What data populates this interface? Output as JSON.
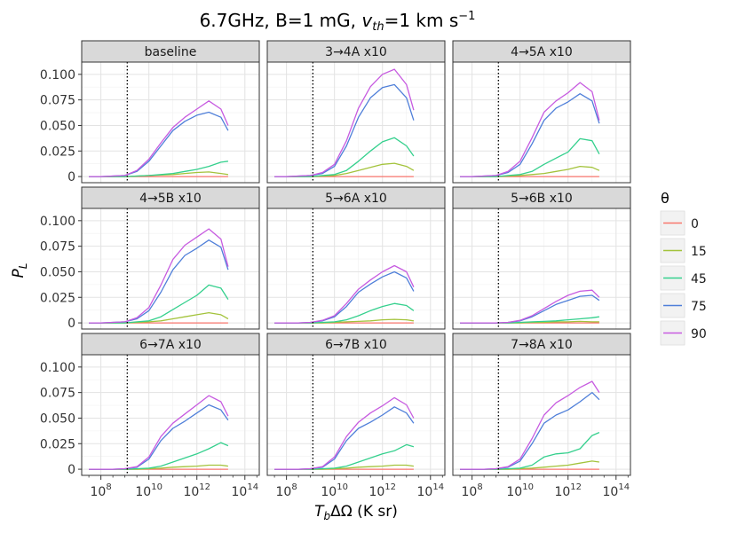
{
  "figure": {
    "title": "6.7GHz, B=1 mG, ",
    "title_var": "v",
    "title_var_sub": "th",
    "title_rest": "=1 km s",
    "title_sup": "−1",
    "xlabel_main": "T",
    "xlabel_sub": "b",
    "xlabel_rest": "ΔΩ (K sr)",
    "ylabel_main": "P",
    "ylabel_sub": "L"
  },
  "axes": {
    "x_tick_base": "10",
    "x_tick_exponents": [
      "8",
      "10",
      "12",
      "14"
    ],
    "x_log_min": 7.2,
    "x_log_max": 14.6,
    "y_tick_labels": [
      "0",
      "0.025",
      "0.050",
      "0.075",
      "0.100"
    ],
    "y_tick_values": [
      0,
      0.025,
      0.05,
      0.075,
      0.1
    ],
    "y_min": -0.006,
    "y_max": 0.112,
    "vline_log_x": 9.1
  },
  "legend": {
    "title": "θ",
    "items": [
      {
        "label": "0",
        "color": "#F8766D"
      },
      {
        "label": "15",
        "color": "#A3C33B"
      },
      {
        "label": "45",
        "color": "#34D08D"
      },
      {
        "label": "75",
        "color": "#4F7FD9"
      },
      {
        "label": "90",
        "color": "#C75BE0"
      }
    ]
  },
  "chart_data": {
    "type": "line",
    "x_scale": "log10",
    "x_log10": [
      7.5,
      8,
      8.5,
      9,
      9.5,
      10,
      10.5,
      11,
      11.5,
      12,
      12.5,
      13,
      13.3
    ],
    "series_names": [
      "0",
      "15",
      "45",
      "75",
      "90"
    ],
    "panels": [
      {
        "title": "baseline",
        "series": [
          {
            "name": "0",
            "values": [
              0,
              0,
              0,
              0,
              0,
              0,
              0,
              0,
              0,
              0,
              0,
              0,
              0
            ]
          },
          {
            "name": "15",
            "values": [
              0,
              0,
              0,
              0,
              0.0005,
              0.001,
              0.0015,
              0.002,
              0.003,
              0.004,
              0.0045,
              0.003,
              0.002
            ]
          },
          {
            "name": "45",
            "values": [
              0,
              0,
              0,
              0,
              0.0005,
              0.001,
              0.002,
              0.003,
              0.005,
              0.007,
              0.01,
              0.014,
              0.015
            ]
          },
          {
            "name": "75",
            "values": [
              0,
              0,
              0.0005,
              0.001,
              0.005,
              0.015,
              0.03,
              0.045,
              0.054,
              0.06,
              0.063,
              0.058,
              0.045
            ]
          },
          {
            "name": "90",
            "values": [
              0,
              0,
              0.0005,
              0.001,
              0.006,
              0.017,
              0.033,
              0.048,
              0.058,
              0.066,
              0.074,
              0.066,
              0.05
            ]
          }
        ]
      },
      {
        "title": "3→4A x10",
        "series": [
          {
            "name": "0",
            "values": [
              0,
              0,
              0,
              0,
              0,
              0,
              0,
              0,
              0,
              0,
              0,
              0,
              0
            ]
          },
          {
            "name": "15",
            "values": [
              0,
              0,
              0,
              0,
              0.0005,
              0.001,
              0.003,
              0.006,
              0.009,
              0.012,
              0.013,
              0.01,
              0.006
            ]
          },
          {
            "name": "45",
            "values": [
              0,
              0,
              0,
              0,
              0.001,
              0.002,
              0.006,
              0.015,
              0.025,
              0.034,
              0.038,
              0.03,
              0.02
            ]
          },
          {
            "name": "75",
            "values": [
              0,
              0,
              0.0005,
              0.001,
              0.003,
              0.01,
              0.03,
              0.058,
              0.077,
              0.087,
              0.09,
              0.077,
              0.055
            ]
          },
          {
            "name": "90",
            "values": [
              0,
              0,
              0.0005,
              0.001,
              0.004,
              0.012,
              0.035,
              0.067,
              0.088,
              0.1,
              0.105,
              0.09,
              0.065
            ]
          }
        ]
      },
      {
        "title": "4→5A x10",
        "series": [
          {
            "name": "0",
            "values": [
              0,
              0,
              0,
              0,
              0,
              0,
              0,
              0,
              0,
              0,
              0,
              0,
              0
            ]
          },
          {
            "name": "15",
            "values": [
              0,
              0,
              0,
              0,
              0.0005,
              0.001,
              0.002,
              0.003,
              0.005,
              0.007,
              0.01,
              0.009,
              0.006
            ]
          },
          {
            "name": "45",
            "values": [
              0,
              0,
              0,
              0,
              0.001,
              0.002,
              0.005,
              0.012,
              0.018,
              0.024,
              0.037,
              0.035,
              0.022
            ]
          },
          {
            "name": "75",
            "values": [
              0,
              0,
              0.0005,
              0.001,
              0.004,
              0.012,
              0.032,
              0.055,
              0.067,
              0.073,
              0.081,
              0.074,
              0.052
            ]
          },
          {
            "name": "90",
            "values": [
              0,
              0,
              0.0005,
              0.001,
              0.005,
              0.015,
              0.038,
              0.063,
              0.074,
              0.082,
              0.092,
              0.083,
              0.055
            ]
          }
        ]
      },
      {
        "title": "4→5B x10",
        "series": [
          {
            "name": "0",
            "values": [
              0,
              0,
              0,
              0,
              0,
              0,
              0,
              0,
              0,
              0,
              0,
              0,
              0
            ]
          },
          {
            "name": "15",
            "values": [
              0,
              0,
              0,
              0,
              0.0005,
              0.001,
              0.002,
              0.004,
              0.006,
              0.008,
              0.01,
              0.008,
              0.004
            ]
          },
          {
            "name": "45",
            "values": [
              0,
              0,
              0,
              0,
              0.001,
              0.002,
              0.006,
              0.013,
              0.02,
              0.027,
              0.037,
              0.034,
              0.023
            ]
          },
          {
            "name": "75",
            "values": [
              0,
              0,
              0.0005,
              0.001,
              0.004,
              0.012,
              0.03,
              0.052,
              0.066,
              0.073,
              0.081,
              0.074,
              0.052
            ]
          },
          {
            "name": "90",
            "values": [
              0,
              0,
              0.0005,
              0.001,
              0.005,
              0.015,
              0.037,
              0.062,
              0.076,
              0.084,
              0.092,
              0.082,
              0.055
            ]
          }
        ]
      },
      {
        "title": "5→6A x10",
        "series": [
          {
            "name": "0",
            "values": [
              0,
              0,
              0,
              0,
              0,
              0,
              0,
              0,
              0,
              0,
              0,
              0,
              0
            ]
          },
          {
            "name": "15",
            "values": [
              0,
              0,
              0,
              0,
              0,
              0.0005,
              0.001,
              0.0015,
              0.002,
              0.003,
              0.0035,
              0.003,
              0.002
            ]
          },
          {
            "name": "45",
            "values": [
              0,
              0,
              0,
              0,
              0.0005,
              0.001,
              0.003,
              0.007,
              0.012,
              0.016,
              0.019,
              0.017,
              0.012
            ]
          },
          {
            "name": "75",
            "values": [
              0,
              0,
              0,
              0.0005,
              0.002,
              0.006,
              0.016,
              0.03,
              0.038,
              0.045,
              0.05,
              0.044,
              0.031
            ]
          },
          {
            "name": "90",
            "values": [
              0,
              0,
              0,
              0.0005,
              0.0025,
              0.007,
              0.019,
              0.033,
              0.042,
              0.05,
              0.056,
              0.05,
              0.035
            ]
          }
        ]
      },
      {
        "title": "5→6B x10",
        "series": [
          {
            "name": "0",
            "values": [
              0,
              0,
              0,
              0,
              0,
              0,
              0,
              0,
              0,
              0,
              0,
              0,
              0
            ]
          },
          {
            "name": "15",
            "values": [
              0,
              0,
              0,
              0,
              0,
              0,
              0.0005,
              0.0005,
              0.001,
              0.001,
              0.0015,
              0.001,
              0.001
            ]
          },
          {
            "name": "45",
            "values": [
              0,
              0,
              0,
              0,
              0,
              0.0005,
              0.001,
              0.0015,
              0.002,
              0.003,
              0.004,
              0.005,
              0.006
            ]
          },
          {
            "name": "75",
            "values": [
              0,
              0,
              0,
              0,
              0.0005,
              0.002,
              0.006,
              0.012,
              0.018,
              0.022,
              0.026,
              0.027,
              0.022
            ]
          },
          {
            "name": "90",
            "values": [
              0,
              0,
              0,
              0,
              0.0005,
              0.0025,
              0.007,
              0.014,
              0.021,
              0.027,
              0.031,
              0.032,
              0.025
            ]
          }
        ]
      },
      {
        "title": "6→7A x10",
        "series": [
          {
            "name": "0",
            "values": [
              0,
              0,
              0,
              0,
              0,
              0,
              0,
              0,
              0,
              0,
              0,
              0,
              0
            ]
          },
          {
            "name": "15",
            "values": [
              0,
              0,
              0,
              0,
              0,
              0.0005,
              0.001,
              0.002,
              0.0025,
              0.003,
              0.004,
              0.004,
              0.003
            ]
          },
          {
            "name": "45",
            "values": [
              0,
              0,
              0,
              0,
              0.0005,
              0.001,
              0.003,
              0.007,
              0.011,
              0.015,
              0.02,
              0.026,
              0.023
            ]
          },
          {
            "name": "75",
            "values": [
              0,
              0,
              0,
              0.0005,
              0.002,
              0.01,
              0.028,
              0.04,
              0.047,
              0.055,
              0.063,
              0.058,
              0.048
            ]
          },
          {
            "name": "90",
            "values": [
              0,
              0,
              0,
              0.0005,
              0.0025,
              0.012,
              0.032,
              0.045,
              0.054,
              0.063,
              0.072,
              0.066,
              0.052
            ]
          }
        ]
      },
      {
        "title": "6→7B x10",
        "series": [
          {
            "name": "0",
            "values": [
              0,
              0,
              0,
              0,
              0,
              0,
              0,
              0,
              0,
              0,
              0,
              0,
              0
            ]
          },
          {
            "name": "15",
            "values": [
              0,
              0,
              0,
              0,
              0,
              0.0005,
              0.001,
              0.002,
              0.0025,
              0.003,
              0.004,
              0.004,
              0.003
            ]
          },
          {
            "name": "45",
            "values": [
              0,
              0,
              0,
              0,
              0.0005,
              0.001,
              0.003,
              0.007,
              0.011,
              0.015,
              0.018,
              0.024,
              0.022
            ]
          },
          {
            "name": "75",
            "values": [
              0,
              0,
              0,
              0.0005,
              0.002,
              0.01,
              0.028,
              0.04,
              0.046,
              0.053,
              0.061,
              0.055,
              0.045
            ]
          },
          {
            "name": "90",
            "values": [
              0,
              0,
              0,
              0.0005,
              0.0025,
              0.012,
              0.032,
              0.046,
              0.055,
              0.062,
              0.07,
              0.063,
              0.05
            ]
          }
        ]
      },
      {
        "title": "7→8A x10",
        "series": [
          {
            "name": "0",
            "values": [
              0,
              0,
              0,
              0,
              0,
              0,
              0,
              0,
              0,
              0,
              0,
              0,
              0
            ]
          },
          {
            "name": "15",
            "values": [
              0,
              0,
              0,
              0,
              0,
              0.0005,
              0.001,
              0.002,
              0.003,
              0.004,
              0.006,
              0.008,
              0.007
            ]
          },
          {
            "name": "45",
            "values": [
              0,
              0,
              0,
              0,
              0.0005,
              0.001,
              0.004,
              0.012,
              0.015,
              0.016,
              0.02,
              0.033,
              0.036
            ]
          },
          {
            "name": "75",
            "values": [
              0,
              0,
              0,
              0.0005,
              0.002,
              0.008,
              0.025,
              0.045,
              0.053,
              0.058,
              0.066,
              0.075,
              0.068
            ]
          },
          {
            "name": "90",
            "values": [
              0,
              0,
              0,
              0.0005,
              0.0025,
              0.01,
              0.03,
              0.053,
              0.065,
              0.072,
              0.08,
              0.086,
              0.075
            ]
          }
        ]
      }
    ]
  }
}
